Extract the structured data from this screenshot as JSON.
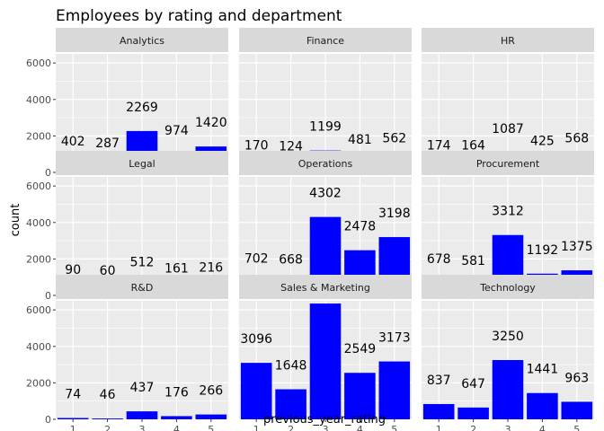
{
  "chart_data": {
    "type": "bar",
    "title": "Employees by rating and department",
    "xlabel": "previous_year_rating",
    "ylabel": "count",
    "ylim": [
      0,
      6500
    ],
    "y_ticks": [
      0,
      2000,
      4000,
      6000
    ],
    "categories": [
      "1",
      "2",
      "3",
      "4",
      "5"
    ],
    "bar_color": "#0000FF",
    "panel_bg": "#EBEBEB",
    "strip_bg": "#D9D9D9",
    "panels": [
      {
        "name": "Analytics",
        "values": [
          402,
          287,
          2269,
          974,
          1420
        ],
        "labels": [
          "402",
          "287",
          "2269",
          "974",
          "1420"
        ]
      },
      {
        "name": "Finance",
        "values": [
          170,
          124,
          1199,
          481,
          562
        ],
        "labels": [
          "170",
          "124",
          "1199",
          "481",
          "562"
        ]
      },
      {
        "name": "HR",
        "values": [
          174,
          164,
          1087,
          425,
          568
        ],
        "labels": [
          "174",
          "164",
          "1087",
          "425",
          "568"
        ]
      },
      {
        "name": "Legal",
        "values": [
          90,
          60,
          512,
          161,
          216
        ],
        "labels": [
          "90",
          "60",
          "512",
          "161",
          "216"
        ]
      },
      {
        "name": "Operations",
        "values": [
          702,
          668,
          4302,
          2478,
          3198
        ],
        "labels": [
          "702",
          "668",
          "4302",
          "2478",
          "3198"
        ]
      },
      {
        "name": "Procurement",
        "values": [
          678,
          581,
          3312,
          1192,
          1375
        ],
        "labels": [
          "678",
          "581",
          "3312",
          "1192",
          "1375"
        ]
      },
      {
        "name": "R&D",
        "values": [
          74,
          46,
          437,
          176,
          266
        ],
        "labels": [
          "74",
          "46",
          "437",
          "176",
          "266"
        ]
      },
      {
        "name": "Sales & Marketing",
        "values": [
          3096,
          1648,
          6350,
          2549,
          3173
        ],
        "labels": [
          "3096",
          "1648",
          "",
          "2549",
          "3173"
        ]
      },
      {
        "name": "Technology",
        "values": [
          837,
          647,
          3250,
          1441,
          963
        ],
        "labels": [
          "837",
          "647",
          "3250",
          "1441",
          "963"
        ]
      }
    ]
  }
}
